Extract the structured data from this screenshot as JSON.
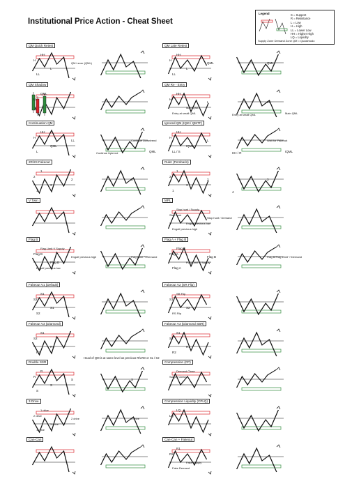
{
  "page": {
    "title": "Institutional Price Action - Cheat Sheet",
    "note": "Head of QM is at same level as previous R/LRD or SL / S2"
  },
  "legend": {
    "title": "Legend",
    "items": [
      "S = Support",
      "R = Resistance",
      "L = Low",
      "H = High",
      "LL = Lower Low",
      "HH = Higher High",
      "LQ = Liquidity"
    ],
    "zones": "Supply Zone  Demand Zone  QM = Quasimodo"
  },
  "colors": {
    "supply": "#d9232b",
    "demand": "#2e8b3d",
    "line": "#111111",
    "candle_up": "#2e8b3d",
    "candle_down": "#d9232b"
  },
  "panels": [
    {
      "title": "QM Quick Retest",
      "labels": [
        "HH",
        "H",
        "L",
        "LL",
        "QM Lever (QML)"
      ]
    },
    {
      "title": "QM Late Retest",
      "labels": [
        "HH",
        "H",
        "L",
        "LL",
        "QML",
        "QML"
      ]
    },
    {
      "title": "QM Shadow",
      "labels": [
        "QML",
        "LL"
      ]
    },
    {
      "title": "QM Re - Entry",
      "labels": [
        "HH",
        "H",
        "Main QML",
        "Entry at small QML",
        "L",
        "LL",
        "Entry at small QML",
        "Main QML"
      ]
    },
    {
      "title": "Continuation QM",
      "labels": [
        "HH",
        "H",
        "QML",
        "L",
        "LL",
        "Continue Downtrend",
        "Continue Uptrend",
        "QML"
      ]
    },
    {
      "title": "Ignored QM (IQM / QMTF)",
      "labels": [
        "HH",
        "H",
        "IQML",
        "LL / S",
        "L",
        "Wait for Fakeout",
        "HH / R",
        "IQML"
      ]
    },
    {
      "title": "2R/2S Fakeout",
      "labels": [
        "1",
        "2",
        "3",
        "1",
        "2",
        "3"
      ]
    },
    {
      "title": "Ruler (Pembaris)",
      "labels": [
        "1",
        "2",
        "3",
        "1",
        "2",
        "3",
        "4"
      ]
    },
    {
      "title": "V Twin",
      "labels": []
    },
    {
      "title": "MPL",
      "labels": [
        "Stop hunt / Supply",
        "Stop hunt",
        "Engulf previous low",
        "Engulf previous high",
        "Stop hunt / Demand"
      ]
    },
    {
      "title": "Flag B",
      "labels": [
        "Flag Limit */ Supply",
        "Flag B",
        "Flag B",
        "Engulf previous low",
        "Engulf previous high",
        "Flag Limit */ Demand"
      ]
    },
    {
      "title": "Flag A + Flag B",
      "labels": [
        "Flag B",
        "Flag A",
        "Flag Limit */ Supply",
        "Flag A",
        "Flag B",
        "Flag B/Flag Limit */ Demand"
      ]
    },
    {
      "title": "Fakeout V1 (Default)",
      "labels": [
        "S1",
        "S2",
        "S1",
        "S2"
      ]
    },
    {
      "title": "Fakeout V2 (SR Flip)",
      "labels": [
        "SR Flip",
        "S1",
        "S2",
        "RS Flip"
      ]
    },
    {
      "title": "Fakeout V3 (Diamond)",
      "labels": [
        "S1",
        "S2",
        "R1",
        "R2"
      ]
    },
    {
      "title": "Fakeout V3 (Diamond SBR)",
      "labels": [
        "S1",
        "S2",
        "R1",
        "R2"
      ]
    },
    {
      "title": "Double SSR",
      "labels": [
        "R",
        "R",
        "S",
        "S",
        "S",
        "S"
      ]
    },
    {
      "title": "Compression (CP)",
      "labels": [
        "Demand Clean",
        "Supply Clean"
      ]
    },
    {
      "title": "3 Drive",
      "labels": [
        "1 drive",
        "2 drive",
        "3 drive",
        "1 drive",
        "2 drive",
        "3 drive"
      ]
    },
    {
      "title": "Compression Liquidity (CPLQ)",
      "labels": [
        "LQ",
        "LQ"
      ]
    },
    {
      "title": "Can-Can",
      "labels": []
    },
    {
      "title": "Can-Can + Fakeout",
      "labels": [
        "R1",
        "R2",
        "Fake Supply",
        "Fake Demand"
      ]
    }
  ]
}
